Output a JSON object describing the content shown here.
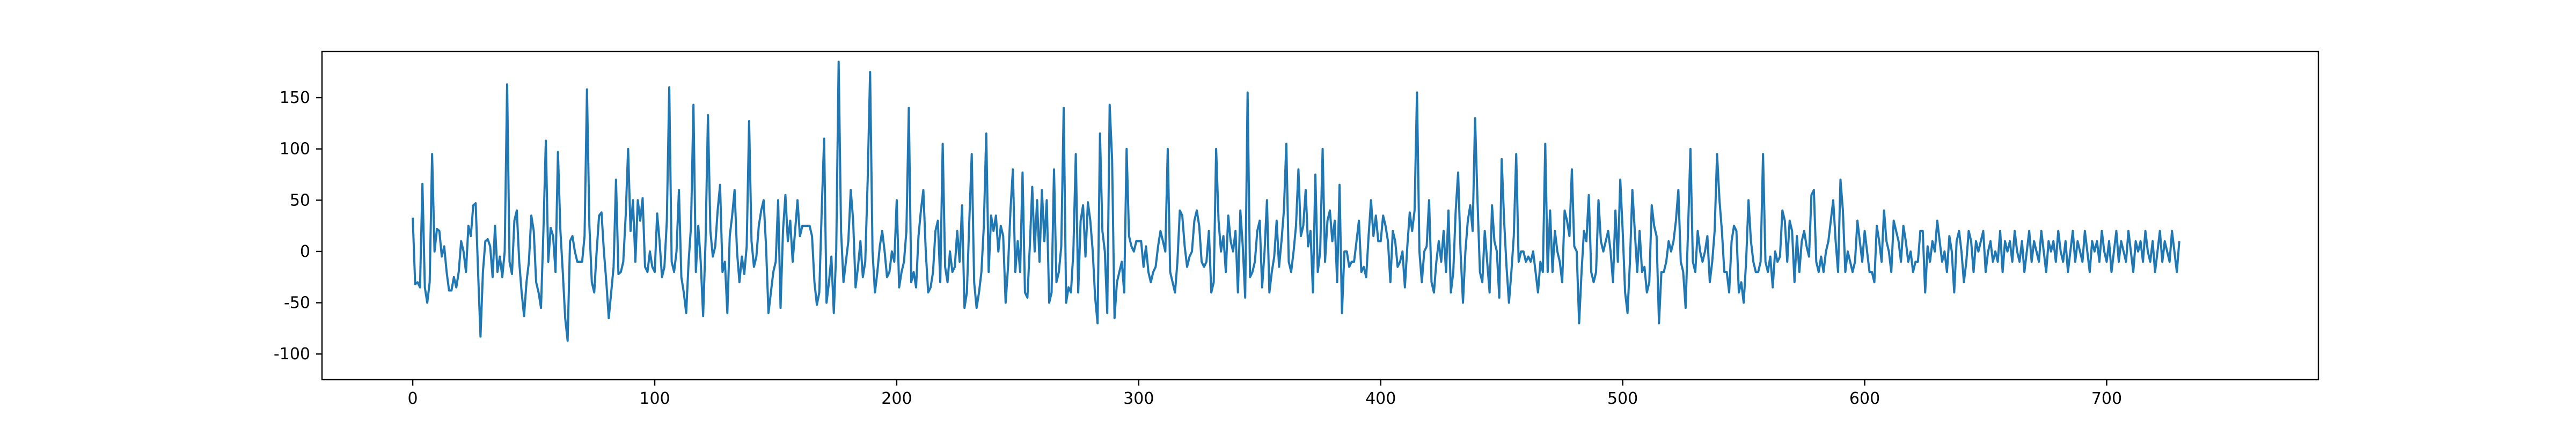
{
  "chart_data": {
    "type": "line",
    "title": "",
    "xlabel": "",
    "ylabel": "",
    "xlim": [
      -37.5,
      787.5
    ],
    "ylim": [
      -125,
      195
    ],
    "x_ticks": [
      0,
      100,
      200,
      300,
      400,
      500,
      600,
      700
    ],
    "y_ticks": [
      -100,
      -50,
      0,
      50,
      100,
      150
    ],
    "grid": false,
    "legend": "none",
    "line_color": "#1f77b4",
    "series": [
      {
        "values": [
          33,
          -32,
          -30,
          -35,
          66,
          -35,
          -50,
          -30,
          95,
          0,
          22,
          20,
          -5,
          5,
          -20,
          -38,
          -38,
          -25,
          -35,
          -20,
          10,
          0,
          -20,
          25,
          15,
          45,
          47,
          -20,
          -83,
          -20,
          10,
          12,
          5,
          -25,
          25,
          -20,
          -5,
          -25,
          0,
          163,
          -10,
          -22,
          30,
          40,
          -10,
          -40,
          -63,
          -30,
          -10,
          35,
          20,
          -30,
          -40,
          -55,
          20,
          108,
          -10,
          23,
          15,
          -20,
          97,
          21,
          -20,
          -65,
          -87,
          10,
          15,
          0,
          -10,
          -10,
          -10,
          15,
          158,
          25,
          -30,
          -40,
          0,
          35,
          38,
          0,
          -30,
          -65,
          -40,
          -15,
          70,
          -22,
          -20,
          -10,
          35,
          100,
          20,
          50,
          -10,
          50,
          30,
          52,
          -15,
          -20,
          0,
          -15,
          -20,
          37,
          10,
          -25,
          -15,
          30,
          160,
          -10,
          -20,
          0,
          60,
          -25,
          -40,
          -60,
          -10,
          25,
          143,
          -20,
          25,
          -10,
          -63,
          10,
          133,
          20,
          -5,
          5,
          40,
          65,
          -20,
          -10,
          -60,
          15,
          35,
          60,
          0,
          -30,
          -5,
          -22,
          5,
          127,
          10,
          -15,
          -5,
          25,
          40,
          50,
          5,
          -60,
          -40,
          -20,
          -10,
          50,
          -55,
          20,
          55,
          10,
          30,
          -10,
          20,
          50,
          15,
          25,
          25,
          25,
          25,
          15,
          -30,
          -52,
          -40,
          40,
          110,
          -50,
          -30,
          -5,
          -60,
          0,
          185,
          20,
          -30,
          -10,
          10,
          60,
          30,
          -35,
          -15,
          10,
          -25,
          -10,
          70,
          175,
          0,
          -40,
          -20,
          5,
          20,
          0,
          -25,
          -20,
          0,
          -10,
          50,
          -35,
          -20,
          -10,
          20,
          140,
          -30,
          -20,
          -35,
          15,
          40,
          60,
          0,
          -40,
          -35,
          -20,
          20,
          30,
          -30,
          105,
          -15,
          -30,
          0,
          -20,
          -15,
          20,
          -10,
          45,
          -55,
          -40,
          30,
          95,
          -30,
          -55,
          -40,
          -20,
          25,
          115,
          -20,
          35,
          20,
          35,
          0,
          25,
          15,
          -50,
          -15,
          40,
          80,
          -20,
          10,
          -20,
          77,
          -40,
          -45,
          5,
          63,
          0,
          50,
          -10,
          60,
          10,
          50,
          -50,
          -40,
          80,
          -30,
          -20,
          5,
          140,
          -50,
          -35,
          -40,
          0,
          95,
          -40,
          30,
          45,
          -5,
          48,
          30,
          0,
          -45,
          -70,
          115,
          20,
          0,
          -60,
          143,
          90,
          -65,
          -30,
          -20,
          -10,
          -40,
          100,
          15,
          5,
          0,
          10,
          10,
          10,
          -15,
          5,
          -20,
          -30,
          -20,
          -15,
          5,
          20,
          10,
          0,
          100,
          -20,
          -30,
          -40,
          -10,
          40,
          35,
          5,
          -15,
          -5,
          0,
          30,
          40,
          25,
          -10,
          -15,
          -10,
          20,
          -40,
          -30,
          100,
          30,
          0,
          15,
          -20,
          35,
          10,
          0,
          20,
          -40,
          40,
          5,
          -45,
          155,
          -25,
          -20,
          -10,
          20,
          30,
          -35,
          0,
          50,
          -40,
          -20,
          -5,
          30,
          -15,
          10,
          40,
          105,
          -10,
          -20,
          0,
          25,
          80,
          15,
          25,
          60,
          5,
          20,
          -40,
          75,
          -20,
          0,
          100,
          -10,
          30,
          40,
          10,
          30,
          -30,
          65,
          -60,
          0,
          0,
          -15,
          -10,
          -10,
          10,
          30,
          -20,
          -15,
          -25,
          15,
          50,
          15,
          35,
          10,
          10,
          35,
          25,
          10,
          -30,
          20,
          10,
          -15,
          -10,
          0,
          -35,
          5,
          38,
          20,
          40,
          155,
          0,
          -30,
          0,
          5,
          50,
          -30,
          -40,
          -10,
          10,
          -10,
          20,
          -20,
          40,
          -40,
          -20,
          40,
          77,
          0,
          -50,
          0,
          30,
          45,
          20,
          130,
          50,
          -20,
          -30,
          20,
          -10,
          -40,
          45,
          10,
          0,
          -45,
          90,
          30,
          -15,
          -50,
          -20,
          15,
          95,
          -10,
          0,
          0,
          -10,
          -5,
          -10,
          0,
          -20,
          -40,
          -10,
          -20,
          105,
          -20,
          40,
          -20,
          20,
          0,
          -10,
          -30,
          40,
          30,
          15,
          80,
          5,
          0,
          -70,
          -20,
          20,
          10,
          55,
          -20,
          -30,
          -20,
          50,
          10,
          0,
          10,
          20,
          0,
          -30,
          40,
          -10,
          70,
          20,
          -40,
          -60,
          -10,
          60,
          20,
          -20,
          20,
          -20,
          -15,
          -40,
          -30,
          45,
          25,
          15,
          -70,
          -20,
          -20,
          -10,
          10,
          0,
          10,
          30,
          60,
          -10,
          -20,
          -55,
          20,
          100,
          -10,
          -20,
          20,
          0,
          -10,
          0,
          15,
          -30,
          -10,
          20,
          95,
          50,
          20,
          -20,
          -20,
          -40,
          10,
          25,
          20,
          -40,
          -30,
          -50,
          -10,
          50,
          10,
          -10,
          -20,
          -20,
          -10,
          95,
          -10,
          -20,
          -5,
          -35,
          0,
          -10,
          -5,
          40,
          30,
          -10,
          30,
          20,
          -30,
          15,
          -20,
          10,
          20,
          5,
          -5,
          55,
          60,
          -10,
          -20,
          -5,
          -20,
          0,
          10,
          30,
          50,
          10,
          -20,
          70,
          40,
          -20,
          0,
          -10,
          -20,
          -10,
          30,
          10,
          -10,
          20,
          0,
          -20,
          -20,
          -30,
          25,
          10,
          -10,
          40,
          10,
          0,
          -20,
          30,
          20,
          10,
          -10,
          25,
          10,
          -10,
          0,
          -20,
          -10,
          -10,
          20,
          20,
          -40,
          5,
          -10,
          10,
          0,
          30,
          10,
          -10,
          0,
          -20,
          15,
          0,
          -40,
          10,
          20,
          0,
          -30,
          -10,
          20,
          10,
          -20,
          10,
          0,
          10,
          20,
          -20,
          0,
          10,
          -10,
          0,
          -10,
          20,
          -20,
          10,
          0,
          10,
          -10,
          20,
          0,
          -10,
          10,
          -20,
          0,
          20,
          -10,
          10,
          0,
          -10,
          20,
          0,
          -20,
          10,
          0,
          10,
          -10,
          20,
          0,
          -10,
          10,
          -20,
          0,
          20,
          -10,
          10,
          0,
          -10,
          20,
          0,
          -20,
          10,
          0,
          10,
          -10,
          20,
          0,
          -10,
          10,
          -20,
          0,
          20,
          -10,
          10,
          0,
          -10,
          20,
          0,
          -20,
          10,
          0,
          10,
          -10,
          20,
          0,
          -10,
          10,
          -20,
          0,
          20,
          -10,
          10,
          0,
          -10,
          20,
          0,
          -20,
          10
        ]
      }
    ]
  }
}
